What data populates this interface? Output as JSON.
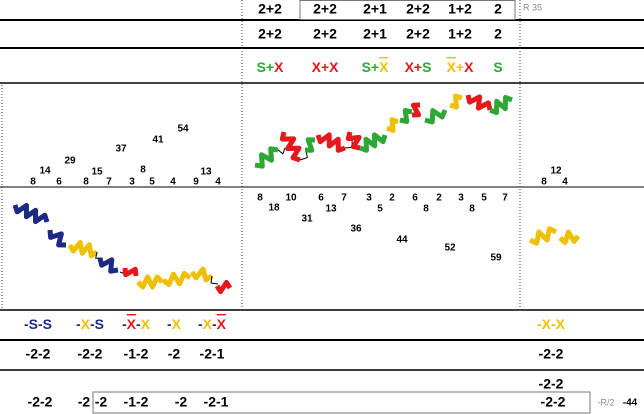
{
  "header": {
    "row1": [
      "2+2",
      "2+2",
      "2+1",
      "2+2",
      "1+2",
      "2"
    ],
    "row1_note": "R 35",
    "row2": [
      "2+2",
      "2+2",
      "2+1",
      "2+2",
      "1+2",
      "2"
    ],
    "row3": [
      [
        {
          "text": "S+",
          "color": "#2ea834"
        },
        {
          "text": "X",
          "color": "#e3191c"
        }
      ],
      [
        {
          "text": "X+X",
          "color": "#e3191c"
        }
      ],
      [
        {
          "text": "S+",
          "color": "#2ea834"
        },
        {
          "text": "X",
          "color": "#efc000",
          "overline": true
        }
      ],
      [
        {
          "text": "X+",
          "color": "#e3191c"
        },
        {
          "text": "S",
          "color": "#2ea834"
        }
      ],
      [
        {
          "text": "X",
          "color": "#efc000",
          "overline": true
        },
        {
          "text": "+",
          "color": "#efc000"
        },
        {
          "text": "X",
          "color": "#e3191c"
        }
      ],
      [
        {
          "text": "S",
          "color": "#2ea834"
        }
      ]
    ]
  },
  "scatter_labels": {
    "left": [
      "8",
      "14",
      "6",
      "29",
      "8",
      "15",
      "7",
      "37",
      "3",
      "8",
      "5",
      "41",
      "4",
      "54",
      "9",
      "13",
      "4"
    ],
    "right": [
      "12",
      "8",
      "4"
    ],
    "middle": [
      "8",
      "18",
      "10",
      "31",
      "6",
      "13",
      "7",
      "3",
      "5",
      "36",
      "2",
      "44",
      "6",
      "8",
      "2",
      "52",
      "3",
      "8",
      "5",
      "59",
      "7"
    ]
  },
  "footer": {
    "row1": [
      [
        {
          "text": "-S-S",
          "color": "#1c2a86"
        }
      ],
      [
        {
          "text": "-",
          "color": "#1c2a86"
        },
        {
          "text": "X",
          "color": "#efc000"
        },
        {
          "text": "-S",
          "color": "#1c2a86"
        }
      ],
      [
        {
          "text": "-",
          "color": "#1c2a86"
        },
        {
          "text": "X",
          "color": "#e3191c",
          "overline": true
        },
        {
          "text": "-",
          "color": "#1c2a86"
        },
        {
          "text": "X",
          "color": "#efc000"
        }
      ],
      [
        {
          "text": "-",
          "color": "#1c2a86"
        },
        {
          "text": "X",
          "color": "#efc000"
        }
      ],
      [
        {
          "text": "-",
          "color": "#1c2a86"
        },
        {
          "text": "X",
          "color": "#efc000"
        },
        {
          "text": "-",
          "color": "#1c2a86"
        },
        {
          "text": "X",
          "color": "#e3191c",
          "overline": true
        }
      ]
    ],
    "row1_right": [
      {
        "text": "-X-X",
        "color": "#efc000"
      }
    ],
    "row2": [
      "-2-2",
      "-2-2",
      "-1-2",
      "-2",
      "-2-1"
    ],
    "row2_right": "-2-2",
    "row3_right": "-2-2",
    "row4": [
      "-2-2",
      "-2",
      "-2",
      "-1-2",
      "-2",
      "-2-1"
    ],
    "row4_right": "-2-2",
    "row4_note": "-R/2",
    "row4_end": "-44"
  }
}
